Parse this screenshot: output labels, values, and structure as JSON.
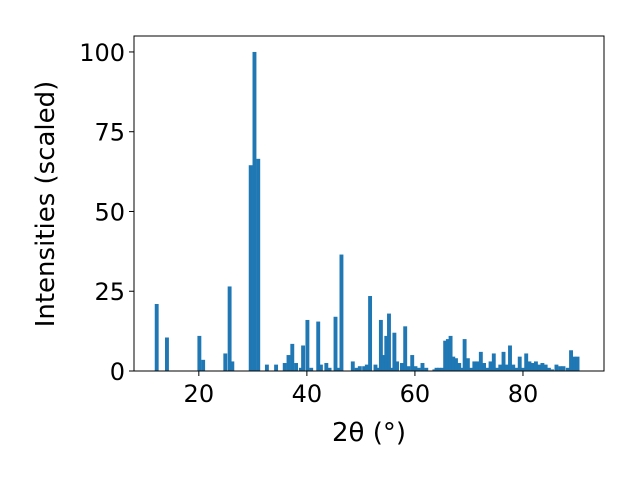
{
  "chart_data": {
    "type": "bar",
    "title": "",
    "xlabel": "2θ (°)",
    "ylabel": "Intensities (scaled)",
    "xlim": [
      8,
      95
    ],
    "ylim": [
      0,
      105
    ],
    "xticks": [
      20,
      40,
      60,
      80
    ],
    "yticks": [
      0,
      25,
      50,
      75,
      100
    ],
    "bar_color": "#1f77b4",
    "grid": false,
    "x": [
      12.2,
      14.1,
      20.1,
      20.8,
      24.9,
      25.7,
      26.2,
      29.6,
      30.3,
      31.0,
      32.6,
      34.3,
      35.9,
      36.6,
      37.3,
      38.0,
      38.9,
      39.3,
      40.1,
      40.8,
      42.1,
      42.6,
      43.6,
      44.2,
      45.3,
      45.8,
      46.4,
      48.5,
      49.2,
      49.8,
      50.6,
      51.1,
      51.7,
      52.7,
      53.2,
      53.7,
      54.2,
      54.7,
      55.2,
      55.7,
      56.2,
      56.7,
      57.6,
      58.2,
      58.8,
      59.5,
      60.1,
      60.7,
      61.4,
      62.1,
      63.6,
      64.0,
      64.5,
      65.1,
      65.6,
      66.1,
      66.6,
      67.1,
      67.6,
      68.2,
      68.7,
      69.2,
      69.8,
      70.4,
      71.0,
      71.6,
      72.2,
      72.8,
      73.4,
      74.0,
      74.6,
      75.2,
      75.8,
      76.4,
      77.0,
      77.6,
      78.2,
      78.8,
      79.4,
      80.0,
      80.6,
      81.2,
      81.8,
      82.4,
      83.0,
      83.6,
      84.2,
      84.8,
      85.4,
      86.2,
      86.9,
      87.5,
      88.3,
      88.9,
      89.5,
      90.1
    ],
    "values": [
      21,
      10.5,
      11,
      3.5,
      5.5,
      26.5,
      3,
      64.5,
      100,
      66.5,
      2,
      2,
      2.5,
      5,
      8.5,
      2.5,
      1,
      8,
      16,
      1,
      15.5,
      2,
      2.5,
      1,
      17,
      1,
      36.5,
      3,
      1,
      1.5,
      1.5,
      2,
      23.5,
      2,
      1,
      16,
      5,
      11,
      18,
      1,
      12,
      3,
      2.5,
      14,
      1.5,
      5,
      1.5,
      1,
      2.5,
      1,
      0.5,
      1,
      1,
      1,
      9.5,
      10,
      11,
      4.5,
      4,
      2.5,
      1,
      10,
      4,
      1,
      3,
      3,
      6,
      2.5,
      1,
      3,
      5.5,
      1,
      2,
      6,
      2,
      8,
      2,
      1,
      4.5,
      1,
      5.5,
      3,
      2.5,
      3,
      2,
      2.5,
      2,
      1,
      0.5,
      2,
      1.5,
      1.5,
      1,
      6.5,
      4.5,
      4.5
    ]
  }
}
